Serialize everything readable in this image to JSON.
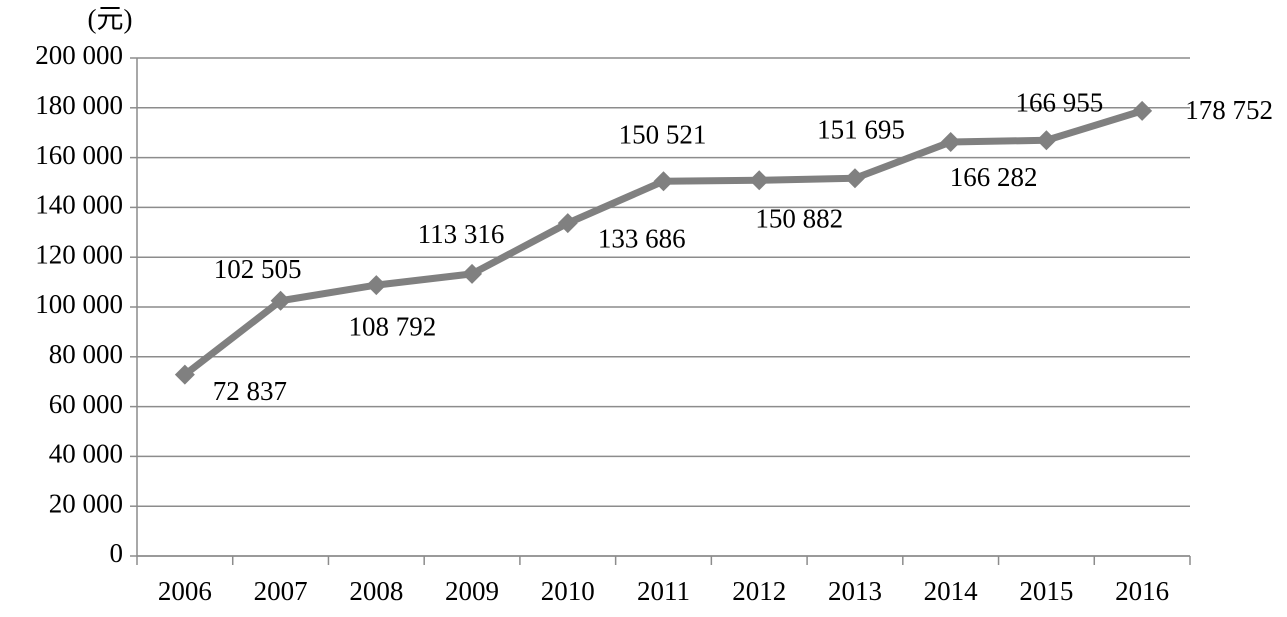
{
  "chart_data": {
    "type": "line",
    "y_label": "(元)",
    "categories": [
      "2006",
      "2007",
      "2008",
      "2009",
      "2010",
      "2011",
      "2012",
      "2013",
      "2014",
      "2015",
      "2016"
    ],
    "values": [
      72837,
      102505,
      108792,
      113316,
      133686,
      150521,
      150882,
      151695,
      166282,
      166955,
      178752
    ],
    "value_labels": [
      "72 837",
      "102 505",
      "108 792",
      "113 316",
      "133 686",
      "150 521",
      "150 882",
      "151 695",
      "166 282",
      "166 955",
      "178 752"
    ],
    "color": "#808080",
    "ylim": [
      0,
      200000
    ],
    "yticks": [
      0,
      {
        "value": 20000,
        "label": "20 000"
      },
      {
        "value": 40000,
        "label": "40 000"
      },
      {
        "value": 60000,
        "label": "60 000"
      },
      {
        "value": 80000,
        "label": "80 000"
      },
      {
        "value": 100000,
        "label": "100 000"
      },
      {
        "value": 120000,
        "label": "120 000"
      },
      {
        "value": 140000,
        "label": "140 000"
      },
      {
        "value": 160000,
        "label": "160 000"
      },
      {
        "value": 180000,
        "label": "180 000"
      },
      {
        "value": 200000,
        "label": "200 000"
      }
    ],
    "grid": true
  }
}
